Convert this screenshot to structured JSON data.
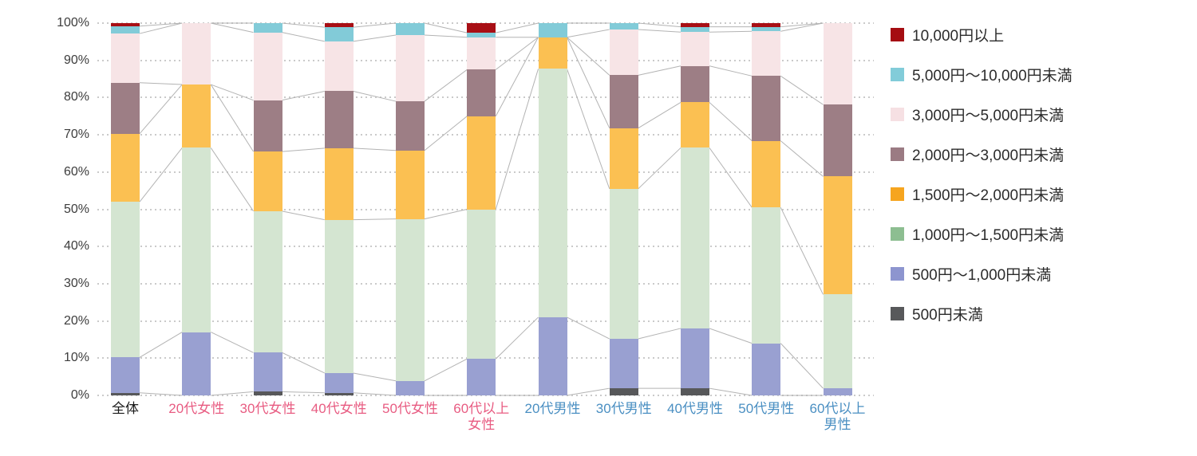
{
  "chart_data": {
    "type": "bar",
    "variant": "100-percent-stacked-column",
    "title": "",
    "xlabel": "",
    "ylabel": "",
    "grid": "dotted horizontal lines every 10%",
    "legend_position": "right",
    "connector_lines": true,
    "categories": [
      "全体",
      "20代女性",
      "30代女性",
      "40代女性",
      "50代女性",
      "60代以上\n女性",
      "20代男性",
      "30代男性",
      "40代男性",
      "50代男性",
      "60代以上\n男性"
    ],
    "category_label_colors": [
      "#1a1a1a",
      "#e85c82",
      "#e85c82",
      "#e85c82",
      "#e85c82",
      "#e85c82",
      "#4a8fc2",
      "#4a8fc2",
      "#4a8fc2",
      "#4a8fc2",
      "#4a8fc2"
    ],
    "series": [
      {
        "name": "500円未満",
        "bar_color": "#57585a",
        "legend_color": "#58595b",
        "values": [
          0.7,
          0,
          1.0,
          0.7,
          0,
          0,
          0,
          1.9,
          1.9,
          0,
          0
        ]
      },
      {
        "name": "500円〜1,000円未満",
        "bar_color": "#99a0d1",
        "legend_color": "#8d95cf",
        "values": [
          9.5,
          17.0,
          10.5,
          5.3,
          3.9,
          9.8,
          21.0,
          13.3,
          16.1,
          14.0,
          1.9
        ]
      },
      {
        "name": "1,000円〜1,500円未満",
        "bar_color": "#d4e5d1",
        "legend_color": "#8dbe91",
        "values": [
          41.8,
          49.5,
          38.0,
          41.2,
          43.5,
          40.2,
          66.7,
          40.3,
          48.5,
          36.5,
          25.2
        ]
      },
      {
        "name": "1,500円〜2,000円未満",
        "bar_color": "#fbc052",
        "legend_color": "#f6a51f",
        "values": [
          18.3,
          17.0,
          16.0,
          19.2,
          18.4,
          25.0,
          8.5,
          16.3,
          12.2,
          17.9,
          31.7
        ]
      },
      {
        "name": "2,000円〜3,000円未満",
        "bar_color": "#9d7e85",
        "legend_color": "#9b7b83",
        "values": [
          13.7,
          0,
          13.8,
          15.3,
          13.2,
          12.5,
          0,
          14.2,
          9.8,
          17.4,
          19.3
        ]
      },
      {
        "name": "3,000円〜5,000円未満",
        "bar_color": "#f7e4e6",
        "legend_color": "#f6e0e3",
        "values": [
          13.2,
          16.5,
          18.2,
          13.4,
          17.8,
          8.7,
          0,
          12.3,
          9.1,
          12.0,
          21.9
        ]
      },
      {
        "name": "5,000円〜10,000円未満",
        "bar_color": "#82cbd8",
        "legend_color": "#82ccd9",
        "values": [
          2.0,
          0,
          2.5,
          3.8,
          3.2,
          1.2,
          3.8,
          1.7,
          1.4,
          1.2,
          0
        ]
      },
      {
        "name": "10,000円以上",
        "bar_color": "#a80f15",
        "legend_color": "#a50d12",
        "values": [
          0.8,
          0,
          0,
          1.1,
          0,
          2.6,
          0,
          0,
          1.0,
          1.0,
          0
        ]
      }
    ],
    "stack_order": "bottom-to-top as listed",
    "legend_order_top_to_bottom": [
      "10,000円以上",
      "5,000円〜10,000円未満",
      "3,000円〜5,000円未満",
      "2,000円〜3,000円未満",
      "1,500円〜2,000円未満",
      "1,000円〜1,500円未満",
      "500円〜1,000円未満",
      "500円未満"
    ],
    "y_axis": {
      "min": 0,
      "max": 100,
      "tick_step": 10,
      "tick_labels": [
        "0%",
        "10%",
        "20%",
        "30%",
        "40%",
        "50%",
        "60%",
        "70%",
        "80%",
        "90%",
        "100%"
      ]
    }
  },
  "style": {
    "background": "#ffffff",
    "grid_color": "#cacaca",
    "connector_color": "#b3b3b3",
    "y_tick_color": "#3d3d3d",
    "legend_text_color": "#2b2b2b"
  }
}
